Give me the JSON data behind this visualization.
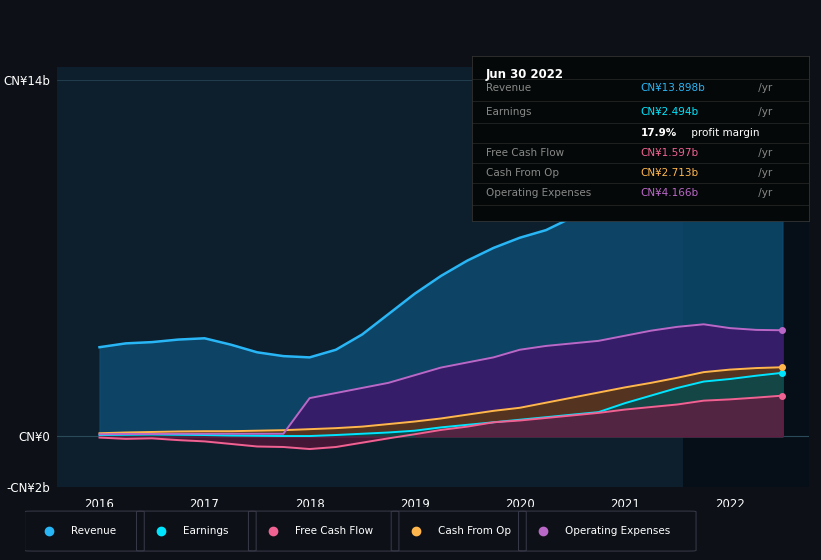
{
  "bg_color": "#0d1117",
  "plot_bg_color": "#0d1f2d",
  "text_color": "#aaaaaa",
  "years": [
    2016.0,
    2016.25,
    2016.5,
    2016.75,
    2017.0,
    2017.25,
    2017.5,
    2017.75,
    2018.0,
    2018.25,
    2018.5,
    2018.75,
    2019.0,
    2019.25,
    2019.5,
    2019.75,
    2020.0,
    2020.25,
    2020.5,
    2020.75,
    2021.0,
    2021.25,
    2021.5,
    2021.75,
    2022.0,
    2022.25,
    2022.5
  ],
  "revenue": [
    3.5,
    3.65,
    3.7,
    3.8,
    3.85,
    3.6,
    3.3,
    3.15,
    3.1,
    3.4,
    4.0,
    4.8,
    5.6,
    6.3,
    6.9,
    7.4,
    7.8,
    8.1,
    8.6,
    9.2,
    9.8,
    11.0,
    12.0,
    12.9,
    13.3,
    13.6,
    13.898
  ],
  "earnings": [
    0.05,
    0.06,
    0.07,
    0.06,
    0.05,
    0.03,
    0.02,
    0.01,
    0.01,
    0.05,
    0.1,
    0.15,
    0.22,
    0.35,
    0.45,
    0.55,
    0.65,
    0.75,
    0.85,
    0.95,
    1.3,
    1.6,
    1.9,
    2.15,
    2.25,
    2.38,
    2.494
  ],
  "free_cash_flow": [
    -0.05,
    -0.1,
    -0.08,
    -0.15,
    -0.2,
    -0.3,
    -0.4,
    -0.42,
    -0.5,
    -0.42,
    -0.25,
    -0.08,
    0.08,
    0.25,
    0.38,
    0.55,
    0.62,
    0.72,
    0.82,
    0.92,
    1.05,
    1.15,
    1.25,
    1.4,
    1.45,
    1.52,
    1.597
  ],
  "cash_from_op": [
    0.12,
    0.15,
    0.17,
    0.19,
    0.2,
    0.2,
    0.22,
    0.24,
    0.28,
    0.32,
    0.38,
    0.48,
    0.58,
    0.7,
    0.85,
    1.0,
    1.12,
    1.32,
    1.52,
    1.72,
    1.92,
    2.1,
    2.3,
    2.52,
    2.62,
    2.68,
    2.713
  ],
  "operating_expenses": [
    0.08,
    0.09,
    0.09,
    0.1,
    0.1,
    0.1,
    0.1,
    0.1,
    1.5,
    1.7,
    1.9,
    2.1,
    2.4,
    2.7,
    2.9,
    3.1,
    3.4,
    3.55,
    3.65,
    3.75,
    3.95,
    4.15,
    4.3,
    4.4,
    4.25,
    4.18,
    4.166
  ],
  "revenue_color": "#29b6f6",
  "earnings_color": "#00e5ff",
  "free_cash_flow_color": "#f06292",
  "cash_from_op_color": "#ffb74d",
  "operating_expenses_color": "#ba68c8",
  "ylim_min": -2.0,
  "ylim_max": 14.5,
  "xlim_min": 2015.6,
  "xlim_max": 2022.75,
  "xticks": [
    2016,
    2017,
    2018,
    2019,
    2020,
    2021,
    2022
  ],
  "highlight_x_start": 2021.55,
  "highlight_x_end": 2022.75,
  "legend_labels": [
    "Revenue",
    "Earnings",
    "Free Cash Flow",
    "Cash From Op",
    "Operating Expenses"
  ],
  "legend_colors": [
    "#29b6f6",
    "#00e5ff",
    "#f06292",
    "#ffb74d",
    "#ba68c8"
  ],
  "table_date": "Jun 30 2022",
  "table_rows": [
    {
      "label": "Revenue",
      "value": "CN¥13.898b",
      "value_color": "#29b6f6"
    },
    {
      "label": "Earnings",
      "value": "CN¥2.494b",
      "value_color": "#00e5ff"
    },
    {
      "label": "",
      "value": "17.9% profit margin",
      "value_color": "#ffffff"
    },
    {
      "label": "Free Cash Flow",
      "value": "CN¥1.597b",
      "value_color": "#f06292"
    },
    {
      "label": "Cash From Op",
      "value": "CN¥2.713b",
      "value_color": "#ffb74d"
    },
    {
      "label": "Operating Expenses",
      "value": "CN¥4.166b",
      "value_color": "#ba68c8"
    }
  ]
}
